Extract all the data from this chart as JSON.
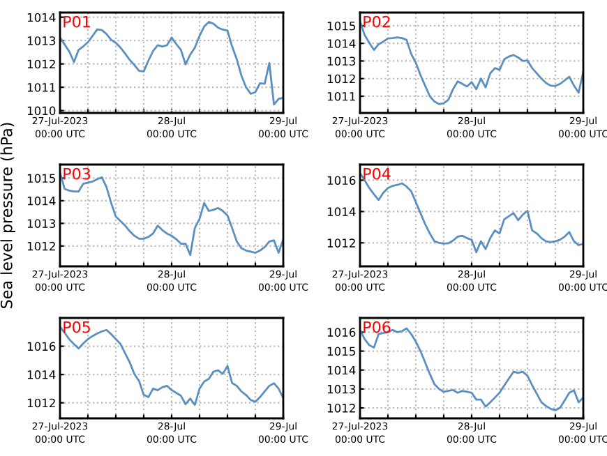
{
  "chart_data": [
    {
      "type": "line",
      "annotations": [
        "P01"
      ],
      "x": [
        "2023-07-27T00:00",
        "2023-07-27T01:00",
        "2023-07-27T02:00",
        "2023-07-27T03:00",
        "2023-07-27T04:00",
        "2023-07-27T05:00",
        "2023-07-27T06:00",
        "2023-07-27T07:00",
        "2023-07-27T08:00",
        "2023-07-27T09:00",
        "2023-07-27T10:00",
        "2023-07-27T11:00",
        "2023-07-27T12:00",
        "2023-07-27T13:00",
        "2023-07-27T14:00",
        "2023-07-27T15:00",
        "2023-07-27T16:00",
        "2023-07-27T17:00",
        "2023-07-27T18:00",
        "2023-07-27T19:00",
        "2023-07-27T20:00",
        "2023-07-27T21:00",
        "2023-07-27T22:00",
        "2023-07-27T23:00",
        "2023-07-28T00:00",
        "2023-07-28T01:00",
        "2023-07-28T02:00",
        "2023-07-28T03:00",
        "2023-07-28T04:00",
        "2023-07-28T05:00",
        "2023-07-28T06:00",
        "2023-07-28T07:00",
        "2023-07-28T08:00",
        "2023-07-28T09:00",
        "2023-07-28T10:00",
        "2023-07-28T11:00",
        "2023-07-28T12:00",
        "2023-07-28T13:00",
        "2023-07-28T14:00",
        "2023-07-28T15:00",
        "2023-07-28T16:00",
        "2023-07-28T17:00",
        "2023-07-28T18:00",
        "2023-07-28T19:00",
        "2023-07-28T20:00",
        "2023-07-28T21:00",
        "2023-07-28T22:00",
        "2023-07-28T23:00",
        "2023-07-29T00:00"
      ],
      "series": [
        {
          "color": "#5b8fc0",
          "values": [
            1013.13,
            1012.83,
            1012.53,
            1012.08,
            1012.6,
            1012.75,
            1012.93,
            1013.2,
            1013.48,
            1013.45,
            1013.28,
            1013.03,
            1012.9,
            1012.7,
            1012.44,
            1012.17,
            1011.95,
            1011.7,
            1011.68,
            1012.14,
            1012.55,
            1012.8,
            1012.75,
            1012.8,
            1013.13,
            1012.85,
            1012.6,
            1011.98,
            1012.4,
            1012.7,
            1013.2,
            1013.6,
            1013.8,
            1013.72,
            1013.55,
            1013.47,
            1013.43,
            1012.75,
            1012.2,
            1011.5,
            1011.0,
            1010.72,
            1010.79,
            1011.17,
            1011.15,
            1012.04,
            1010.26,
            1010.5,
            1010.55
          ]
        }
      ],
      "xlim": [
        "2023-07-27T00:00",
        "2023-07-29T00:00"
      ],
      "xticks": [
        {
          "value": "2023-07-27T00:00",
          "label": "27-Jul-2023\n00:00 UTC"
        },
        {
          "value": "2023-07-27T06:00",
          "label": null
        },
        {
          "value": "2023-07-27T12:00",
          "label": null
        },
        {
          "value": "2023-07-27T18:00",
          "label": null
        },
        {
          "value": "2023-07-28T00:00",
          "label": "28-Jul\n00:00 UTC"
        },
        {
          "value": "2023-07-28T06:00",
          "label": null
        },
        {
          "value": "2023-07-28T12:00",
          "label": null
        },
        {
          "value": "2023-07-28T18:00",
          "label": null
        },
        {
          "value": "2023-07-29T00:00",
          "label": "29-Jul\n00:00 UTC"
        }
      ],
      "ylim": [
        1009.9,
        1014.2
      ],
      "yticks": [
        1010,
        1011,
        1012,
        1013,
        1014
      ],
      "grid": true,
      "marker": "none",
      "line_style": "solid"
    },
    {
      "type": "line",
      "annotations": [
        "P02"
      ],
      "x": [
        "2023-07-27T00:00",
        "2023-07-27T01:00",
        "2023-07-27T02:00",
        "2023-07-27T03:00",
        "2023-07-27T04:00",
        "2023-07-27T05:00",
        "2023-07-27T06:00",
        "2023-07-27T07:00",
        "2023-07-27T08:00",
        "2023-07-27T09:00",
        "2023-07-27T10:00",
        "2023-07-27T11:00",
        "2023-07-27T12:00",
        "2023-07-27T13:00",
        "2023-07-27T14:00",
        "2023-07-27T15:00",
        "2023-07-27T16:00",
        "2023-07-27T17:00",
        "2023-07-27T18:00",
        "2023-07-27T19:00",
        "2023-07-27T20:00",
        "2023-07-27T21:00",
        "2023-07-27T22:00",
        "2023-07-27T23:00",
        "2023-07-28T00:00",
        "2023-07-28T01:00",
        "2023-07-28T02:00",
        "2023-07-28T03:00",
        "2023-07-28T04:00",
        "2023-07-28T05:00",
        "2023-07-28T06:00",
        "2023-07-28T07:00",
        "2023-07-28T08:00",
        "2023-07-28T09:00",
        "2023-07-28T10:00",
        "2023-07-28T11:00",
        "2023-07-28T12:00",
        "2023-07-28T13:00",
        "2023-07-28T14:00",
        "2023-07-28T15:00",
        "2023-07-28T16:00",
        "2023-07-28T17:00",
        "2023-07-28T18:00",
        "2023-07-28T19:00",
        "2023-07-28T20:00",
        "2023-07-28T21:00",
        "2023-07-28T22:00",
        "2023-07-28T23:00",
        "2023-07-29T00:00"
      ],
      "series": [
        {
          "color": "#5b8fc0",
          "values": [
            1015.26,
            1014.47,
            1014.03,
            1013.63,
            1013.95,
            1014.1,
            1014.28,
            1014.3,
            1014.34,
            1014.3,
            1014.2,
            1013.4,
            1012.9,
            1012.2,
            1011.6,
            1011.0,
            1010.7,
            1010.55,
            1010.6,
            1010.8,
            1011.4,
            1011.84,
            1011.7,
            1011.55,
            1011.8,
            1011.4,
            1012.0,
            1011.5,
            1012.3,
            1012.6,
            1012.5,
            1013.1,
            1013.25,
            1013.34,
            1013.2,
            1013.0,
            1013.03,
            1012.6,
            1012.3,
            1012.0,
            1011.75,
            1011.6,
            1011.58,
            1011.7,
            1011.9,
            1012.1,
            1011.6,
            1011.2,
            1012.4
          ]
        }
      ],
      "xlim": [
        "2023-07-27T00:00",
        "2023-07-29T00:00"
      ],
      "xticks": [
        {
          "value": "2023-07-27T00:00",
          "label": "27-Jul-2023\n00:00 UTC"
        },
        {
          "value": "2023-07-27T06:00",
          "label": null
        },
        {
          "value": "2023-07-27T12:00",
          "label": null
        },
        {
          "value": "2023-07-27T18:00",
          "label": null
        },
        {
          "value": "2023-07-28T00:00",
          "label": "28-Jul\n00:00 UTC"
        },
        {
          "value": "2023-07-28T06:00",
          "label": null
        },
        {
          "value": "2023-07-28T12:00",
          "label": null
        },
        {
          "value": "2023-07-28T18:00",
          "label": null
        },
        {
          "value": "2023-07-29T00:00",
          "label": "29-Jul\n00:00 UTC"
        }
      ],
      "ylim": [
        1010.05,
        1015.75
      ],
      "yticks": [
        1011,
        1012,
        1013,
        1014,
        1015
      ],
      "grid": true,
      "marker": "none",
      "line_style": "solid"
    },
    {
      "type": "line",
      "annotations": [
        "P03"
      ],
      "ylabel": "Sea level pressure (hPa)",
      "x": [
        "2023-07-27T00:00",
        "2023-07-27T01:00",
        "2023-07-27T02:00",
        "2023-07-27T03:00",
        "2023-07-27T04:00",
        "2023-07-27T05:00",
        "2023-07-27T06:00",
        "2023-07-27T07:00",
        "2023-07-27T08:00",
        "2023-07-27T09:00",
        "2023-07-27T10:00",
        "2023-07-27T11:00",
        "2023-07-27T12:00",
        "2023-07-27T13:00",
        "2023-07-27T14:00",
        "2023-07-27T15:00",
        "2023-07-27T16:00",
        "2023-07-27T17:00",
        "2023-07-27T18:00",
        "2023-07-27T19:00",
        "2023-07-27T20:00",
        "2023-07-27T21:00",
        "2023-07-27T22:00",
        "2023-07-27T23:00",
        "2023-07-28T00:00",
        "2023-07-28T01:00",
        "2023-07-28T02:00",
        "2023-07-28T03:00",
        "2023-07-28T04:00",
        "2023-07-28T05:00",
        "2023-07-28T06:00",
        "2023-07-28T07:00",
        "2023-07-28T08:00",
        "2023-07-28T09:00",
        "2023-07-28T10:00",
        "2023-07-28T11:00",
        "2023-07-28T12:00",
        "2023-07-28T13:00",
        "2023-07-28T14:00",
        "2023-07-28T15:00",
        "2023-07-28T16:00",
        "2023-07-28T17:00",
        "2023-07-28T18:00",
        "2023-07-28T19:00",
        "2023-07-28T20:00",
        "2023-07-28T21:00",
        "2023-07-28T22:00",
        "2023-07-28T23:00",
        "2023-07-29T00:00"
      ],
      "series": [
        {
          "color": "#5b8fc0",
          "values": [
            1015.25,
            1014.52,
            1014.45,
            1014.41,
            1014.41,
            1014.75,
            1014.8,
            1014.85,
            1014.95,
            1015.04,
            1014.6,
            1013.9,
            1013.3,
            1013.1,
            1012.9,
            1012.65,
            1012.45,
            1012.32,
            1012.32,
            1012.4,
            1012.55,
            1012.9,
            1012.7,
            1012.55,
            1012.45,
            1012.3,
            1012.1,
            1012.1,
            1011.6,
            1012.8,
            1013.2,
            1013.9,
            1013.55,
            1013.6,
            1013.68,
            1013.55,
            1013.35,
            1012.8,
            1012.2,
            1011.9,
            1011.8,
            1011.75,
            1011.7,
            1011.8,
            1011.95,
            1012.2,
            1012.25,
            1011.7,
            1012.3
          ]
        }
      ],
      "xlim": [
        "2023-07-27T00:00",
        "2023-07-29T00:00"
      ],
      "xticks": [
        {
          "value": "2023-07-27T00:00",
          "label": "27-Jul-2023\n00:00 UTC"
        },
        {
          "value": "2023-07-27T06:00",
          "label": null
        },
        {
          "value": "2023-07-27T12:00",
          "label": null
        },
        {
          "value": "2023-07-27T18:00",
          "label": null
        },
        {
          "value": "2023-07-28T00:00",
          "label": "28-Jul\n00:00 UTC"
        },
        {
          "value": "2023-07-28T06:00",
          "label": null
        },
        {
          "value": "2023-07-28T12:00",
          "label": null
        },
        {
          "value": "2023-07-28T18:00",
          "label": null
        },
        {
          "value": "2023-07-29T00:00",
          "label": "29-Jul\n00:00 UTC"
        }
      ],
      "ylim": [
        1011.1,
        1015.6
      ],
      "yticks": [
        1012,
        1013,
        1014,
        1015
      ],
      "grid": true,
      "marker": "none",
      "line_style": "solid"
    },
    {
      "type": "line",
      "annotations": [
        "P04"
      ],
      "x": [
        "2023-07-27T00:00",
        "2023-07-27T01:00",
        "2023-07-27T02:00",
        "2023-07-27T03:00",
        "2023-07-27T04:00",
        "2023-07-27T05:00",
        "2023-07-27T06:00",
        "2023-07-27T07:00",
        "2023-07-27T08:00",
        "2023-07-27T09:00",
        "2023-07-27T10:00",
        "2023-07-27T11:00",
        "2023-07-27T12:00",
        "2023-07-27T13:00",
        "2023-07-27T14:00",
        "2023-07-27T15:00",
        "2023-07-27T16:00",
        "2023-07-27T17:00",
        "2023-07-27T18:00",
        "2023-07-27T19:00",
        "2023-07-27T20:00",
        "2023-07-27T21:00",
        "2023-07-27T22:00",
        "2023-07-27T23:00",
        "2023-07-28T00:00",
        "2023-07-28T01:00",
        "2023-07-28T02:00",
        "2023-07-28T03:00",
        "2023-07-28T04:00",
        "2023-07-28T05:00",
        "2023-07-28T06:00",
        "2023-07-28T07:00",
        "2023-07-28T08:00",
        "2023-07-28T09:00",
        "2023-07-28T10:00",
        "2023-07-28T11:00",
        "2023-07-28T12:00",
        "2023-07-28T13:00",
        "2023-07-28T14:00",
        "2023-07-28T15:00",
        "2023-07-28T16:00",
        "2023-07-28T17:00",
        "2023-07-28T18:00",
        "2023-07-28T19:00",
        "2023-07-28T20:00",
        "2023-07-28T21:00",
        "2023-07-28T22:00",
        "2023-07-28T23:00",
        "2023-07-29T00:00"
      ],
      "series": [
        {
          "color": "#5b8fc0",
          "values": [
            1016.45,
            1016.0,
            1015.5,
            1015.1,
            1014.74,
            1015.2,
            1015.5,
            1015.64,
            1015.7,
            1015.8,
            1015.6,
            1015.3,
            1014.6,
            1013.9,
            1013.2,
            1012.6,
            1012.1,
            1012.0,
            1011.95,
            1011.97,
            1012.15,
            1012.4,
            1012.45,
            1012.3,
            1012.2,
            1011.4,
            1012.1,
            1011.6,
            1012.3,
            1012.8,
            1012.6,
            1013.5,
            1013.7,
            1013.9,
            1013.45,
            1013.8,
            1014.05,
            1012.8,
            1012.6,
            1012.3,
            1012.1,
            1012.05,
            1012.1,
            1012.2,
            1012.4,
            1012.69,
            1012.1,
            1011.85,
            1011.94
          ]
        }
      ],
      "xlim": [
        "2023-07-27T00:00",
        "2023-07-29T00:00"
      ],
      "xticks": [
        {
          "value": "2023-07-27T00:00",
          "label": "27-Jul-2023\n00:00 UTC"
        },
        {
          "value": "2023-07-27T06:00",
          "label": null
        },
        {
          "value": "2023-07-27T12:00",
          "label": null
        },
        {
          "value": "2023-07-27T18:00",
          "label": null
        },
        {
          "value": "2023-07-28T00:00",
          "label": "28-Jul\n00:00 UTC"
        },
        {
          "value": "2023-07-28T06:00",
          "label": null
        },
        {
          "value": "2023-07-28T12:00",
          "label": null
        },
        {
          "value": "2023-07-28T18:00",
          "label": null
        },
        {
          "value": "2023-07-29T00:00",
          "label": "29-Jul\n00:00 UTC"
        }
      ],
      "ylim": [
        1010.5,
        1017.0
      ],
      "yticks": [
        1012,
        1014,
        1016
      ],
      "grid": true,
      "marker": "none",
      "line_style": "solid"
    },
    {
      "type": "line",
      "annotations": [
        "P05"
      ],
      "x": [
        "2023-07-27T00:00",
        "2023-07-27T01:00",
        "2023-07-27T02:00",
        "2023-07-27T03:00",
        "2023-07-27T04:00",
        "2023-07-27T05:00",
        "2023-07-27T06:00",
        "2023-07-27T07:00",
        "2023-07-27T08:00",
        "2023-07-27T09:00",
        "2023-07-27T10:00",
        "2023-07-27T11:00",
        "2023-07-27T12:00",
        "2023-07-27T13:00",
        "2023-07-27T14:00",
        "2023-07-27T15:00",
        "2023-07-27T16:00",
        "2023-07-27T17:00",
        "2023-07-27T18:00",
        "2023-07-27T19:00",
        "2023-07-27T20:00",
        "2023-07-27T21:00",
        "2023-07-27T22:00",
        "2023-07-27T23:00",
        "2023-07-28T00:00",
        "2023-07-28T01:00",
        "2023-07-28T02:00",
        "2023-07-28T03:00",
        "2023-07-28T04:00",
        "2023-07-28T05:00",
        "2023-07-28T06:00",
        "2023-07-28T07:00",
        "2023-07-28T08:00",
        "2023-07-28T09:00",
        "2023-07-28T10:00",
        "2023-07-28T11:00",
        "2023-07-28T12:00",
        "2023-07-28T13:00",
        "2023-07-28T14:00",
        "2023-07-28T15:00",
        "2023-07-28T16:00",
        "2023-07-28T17:00",
        "2023-07-28T18:00",
        "2023-07-28T19:00",
        "2023-07-28T20:00",
        "2023-07-28T21:00",
        "2023-07-28T22:00",
        "2023-07-28T23:00",
        "2023-07-29T00:00"
      ],
      "series": [
        {
          "color": "#5b8fc0",
          "values": [
            1017.38,
            1016.95,
            1016.49,
            1016.15,
            1015.84,
            1016.2,
            1016.5,
            1016.72,
            1016.9,
            1017.05,
            1017.15,
            1016.85,
            1016.5,
            1016.16,
            1015.5,
            1014.85,
            1014.03,
            1013.54,
            1012.56,
            1012.4,
            1013.0,
            1012.89,
            1013.1,
            1013.2,
            1012.9,
            1012.7,
            1012.5,
            1011.9,
            1012.3,
            1011.85,
            1013.0,
            1013.5,
            1013.7,
            1014.2,
            1014.3,
            1014.05,
            1014.6,
            1013.4,
            1013.2,
            1012.8,
            1012.55,
            1012.2,
            1012.07,
            1012.4,
            1012.8,
            1013.2,
            1013.38,
            1013.0,
            1012.33
          ]
        }
      ],
      "xlim": [
        "2023-07-27T00:00",
        "2023-07-29T00:00"
      ],
      "xticks": [
        {
          "value": "2023-07-27T00:00",
          "label": "27-Jul-2023\n00:00 UTC"
        },
        {
          "value": "2023-07-27T06:00",
          "label": null
        },
        {
          "value": "2023-07-27T12:00",
          "label": null
        },
        {
          "value": "2023-07-27T18:00",
          "label": null
        },
        {
          "value": "2023-07-28T00:00",
          "label": "28-Jul\n00:00 UTC"
        },
        {
          "value": "2023-07-28T06:00",
          "label": null
        },
        {
          "value": "2023-07-28T12:00",
          "label": null
        },
        {
          "value": "2023-07-28T18:00",
          "label": null
        },
        {
          "value": "2023-07-29T00:00",
          "label": "29-Jul\n00:00 UTC"
        }
      ],
      "ylim": [
        1010.9,
        1018.0
      ],
      "yticks": [
        1012,
        1014,
        1016
      ],
      "grid": true,
      "marker": "none",
      "line_style": "solid"
    },
    {
      "type": "line",
      "annotations": [
        "P06"
      ],
      "x": [
        "2023-07-27T00:00",
        "2023-07-27T01:00",
        "2023-07-27T02:00",
        "2023-07-27T03:00",
        "2023-07-27T04:00",
        "2023-07-27T05:00",
        "2023-07-27T06:00",
        "2023-07-27T07:00",
        "2023-07-27T08:00",
        "2023-07-27T09:00",
        "2023-07-27T10:00",
        "2023-07-27T11:00",
        "2023-07-27T12:00",
        "2023-07-27T13:00",
        "2023-07-27T14:00",
        "2023-07-27T15:00",
        "2023-07-27T16:00",
        "2023-07-27T17:00",
        "2023-07-27T18:00",
        "2023-07-27T19:00",
        "2023-07-27T20:00",
        "2023-07-27T21:00",
        "2023-07-27T22:00",
        "2023-07-27T23:00",
        "2023-07-28T00:00",
        "2023-07-28T01:00",
        "2023-07-28T02:00",
        "2023-07-28T03:00",
        "2023-07-28T04:00",
        "2023-07-28T05:00",
        "2023-07-28T06:00",
        "2023-07-28T07:00",
        "2023-07-28T08:00",
        "2023-07-28T09:00",
        "2023-07-28T10:00",
        "2023-07-28T11:00",
        "2023-07-28T12:00",
        "2023-07-28T13:00",
        "2023-07-28T14:00",
        "2023-07-28T15:00",
        "2023-07-28T16:00",
        "2023-07-28T17:00",
        "2023-07-28T18:00",
        "2023-07-28T19:00",
        "2023-07-28T20:00",
        "2023-07-28T21:00",
        "2023-07-28T22:00",
        "2023-07-28T23:00",
        "2023-07-29T00:00"
      ],
      "series": [
        {
          "color": "#5b8fc0",
          "values": [
            1016.12,
            1015.63,
            1015.31,
            1015.19,
            1015.9,
            1015.95,
            1016.0,
            1016.12,
            1016.0,
            1016.05,
            1016.2,
            1015.9,
            1015.5,
            1015.0,
            1014.4,
            1013.8,
            1013.25,
            1013.0,
            1012.85,
            1012.9,
            1012.95,
            1012.8,
            1012.9,
            1012.85,
            1012.8,
            1012.44,
            1012.44,
            1012.07,
            1012.3,
            1012.55,
            1012.8,
            1013.18,
            1013.55,
            1013.91,
            1013.85,
            1013.91,
            1013.7,
            1013.2,
            1012.75,
            1012.3,
            1012.1,
            1011.95,
            1011.88,
            1012.0,
            1012.4,
            1012.8,
            1012.93,
            1012.3,
            1012.55
          ]
        }
      ],
      "xlim": [
        "2023-07-27T00:00",
        "2023-07-29T00:00"
      ],
      "xticks": [
        {
          "value": "2023-07-27T00:00",
          "label": "27-Jul-2023\n00:00 UTC"
        },
        {
          "value": "2023-07-27T06:00",
          "label": null
        },
        {
          "value": "2023-07-27T12:00",
          "label": null
        },
        {
          "value": "2023-07-27T18:00",
          "label": null
        },
        {
          "value": "2023-07-28T00:00",
          "label": "28-Jul\n00:00 UTC"
        },
        {
          "value": "2023-07-28T06:00",
          "label": null
        },
        {
          "value": "2023-07-28T12:00",
          "label": null
        },
        {
          "value": "2023-07-28T18:00",
          "label": null
        },
        {
          "value": "2023-07-29T00:00",
          "label": "29-Jul\n00:00 UTC"
        }
      ],
      "ylim": [
        1011.45,
        1016.75
      ],
      "yticks": [
        1012,
        1013,
        1014,
        1015,
        1016
      ],
      "grid": true,
      "marker": "none",
      "line_style": "solid"
    }
  ]
}
